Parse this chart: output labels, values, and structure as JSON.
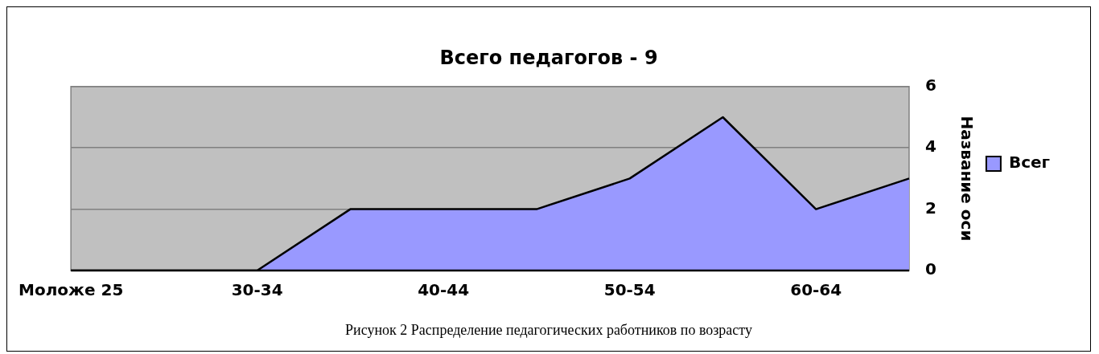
{
  "chart_data": {
    "type": "area",
    "title": "Всего педагогов - 9",
    "ylabel": "Название оси",
    "categories": [
      "Моложе 25",
      null,
      "30-34",
      null,
      "40-44",
      null,
      "50-54",
      null,
      "60-64",
      null
    ],
    "series": [
      {
        "name": "Всег",
        "color": "#9999ff",
        "values": [
          0,
          0,
          0,
          2,
          2,
          2,
          3,
          5,
          2,
          3
        ]
      }
    ],
    "ylim": [
      0,
      6
    ],
    "yticks": [
      0,
      2,
      4,
      6
    ],
    "grid": "y",
    "legend": "right",
    "annotations": [
      "Рисунок 2 Распределение педагогических работников по возрасту"
    ]
  }
}
